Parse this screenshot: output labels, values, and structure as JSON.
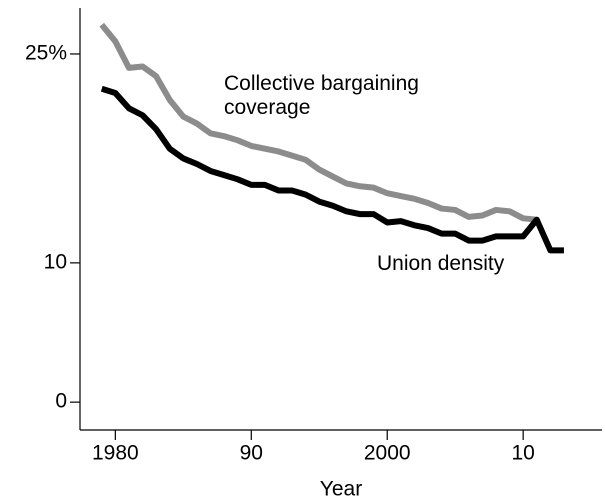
{
  "chart_data": {
    "type": "line",
    "x_label": "Year",
    "x": [
      1979,
      1980,
      1981,
      1982,
      1983,
      1984,
      1985,
      1986,
      1987,
      1988,
      1989,
      1990,
      1991,
      1992,
      1993,
      1994,
      1995,
      1996,
      1997,
      1998,
      1999,
      2000,
      2001,
      2002,
      2003,
      2004,
      2005,
      2006,
      2007,
      2008,
      2009,
      2010,
      2011,
      2012,
      2013
    ],
    "series": [
      {
        "name": "Collective bargaining coverage",
        "color": "#8c8c8c",
        "values": [
          27.1,
          25.9,
          24.0,
          24.1,
          23.4,
          21.7,
          20.5,
          20.0,
          19.3,
          19.1,
          18.8,
          18.4,
          18.2,
          18.0,
          17.7,
          17.4,
          16.7,
          16.2,
          15.7,
          15.5,
          15.4,
          15.0,
          14.8,
          14.6,
          14.3,
          13.9,
          13.8,
          13.3,
          13.4,
          13.8,
          13.7,
          13.2,
          13.1,
          null,
          null
        ]
      },
      {
        "name": "Union density",
        "color": "#000000",
        "values": [
          22.5,
          22.2,
          21.1,
          20.6,
          19.6,
          18.2,
          17.5,
          17.1,
          16.6,
          16.3,
          16.0,
          15.6,
          15.6,
          15.2,
          15.2,
          14.9,
          14.4,
          14.1,
          13.7,
          13.5,
          13.5,
          12.9,
          13.0,
          12.7,
          12.5,
          12.1,
          12.1,
          11.6,
          11.6,
          11.9,
          11.9,
          11.9,
          13.1,
          10.9,
          10.9
        ]
      }
    ],
    "xlim": [
      1977.4,
      2015.8
    ],
    "xticks": [
      1980,
      {
        "value": 1990,
        "label": "90"
      },
      2000,
      {
        "value": 2010,
        "label": "10"
      }
    ],
    "ylim": [
      -2,
      28.3
    ],
    "yticks": [
      0,
      10,
      {
        "value": 25,
        "label": "25%"
      }
    ]
  }
}
